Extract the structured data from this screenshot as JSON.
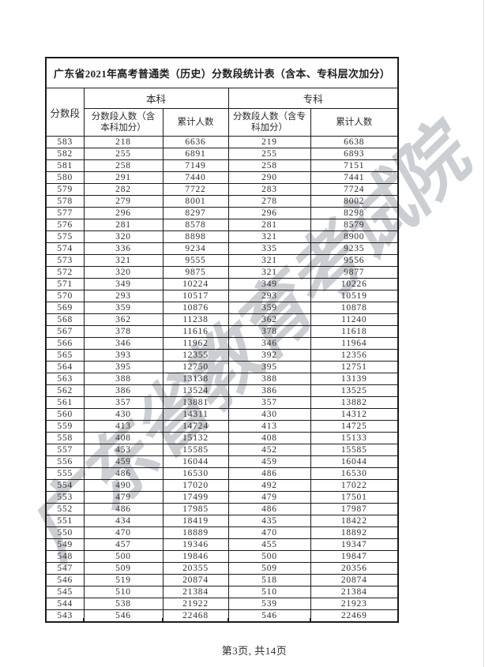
{
  "page": {
    "watermark_text": "广东省教育考试院",
    "footer_text": "第3页, 共14页"
  },
  "table": {
    "title": "广东省2021年高考普通类（历史）分数段统计表（含本、专科层次加分）",
    "col_headers": {
      "score_band": "分数段",
      "undergraduate_group": "本科",
      "college_group": "专科",
      "ug_count_lines": [
        "分数段人数（含",
        "本科加分）"
      ],
      "ug_cumulative": "累计人数",
      "col_count_lines": [
        "分数段人数（含专",
        "科加分）"
      ],
      "col_cumulative": "累计人数"
    },
    "rows": [
      [
        583,
        218,
        6636,
        219,
        6638
      ],
      [
        582,
        255,
        6891,
        255,
        6893
      ],
      [
        581,
        258,
        7149,
        258,
        7151
      ],
      [
        580,
        291,
        7440,
        290,
        7441
      ],
      [
        579,
        282,
        7722,
        283,
        7724
      ],
      [
        578,
        279,
        8001,
        278,
        8002
      ],
      [
        577,
        296,
        8297,
        296,
        8298
      ],
      [
        576,
        281,
        8578,
        281,
        8579
      ],
      [
        575,
        320,
        8898,
        321,
        8900
      ],
      [
        574,
        336,
        9234,
        335,
        9235
      ],
      [
        573,
        321,
        9555,
        321,
        9556
      ],
      [
        572,
        320,
        9875,
        321,
        9877
      ],
      [
        571,
        349,
        10224,
        349,
        10226
      ],
      [
        570,
        293,
        10517,
        293,
        10519
      ],
      [
        569,
        359,
        10876,
        359,
        10878
      ],
      [
        568,
        362,
        11238,
        362,
        11240
      ],
      [
        567,
        378,
        11616,
        378,
        11618
      ],
      [
        566,
        346,
        11962,
        346,
        11964
      ],
      [
        565,
        393,
        12355,
        392,
        12356
      ],
      [
        564,
        395,
        12750,
        395,
        12751
      ],
      [
        563,
        388,
        13138,
        388,
        13139
      ],
      [
        562,
        386,
        13524,
        386,
        13525
      ],
      [
        561,
        357,
        13881,
        357,
        13882
      ],
      [
        560,
        430,
        14311,
        430,
        14312
      ],
      [
        559,
        413,
        14724,
        413,
        14725
      ],
      [
        558,
        408,
        15132,
        408,
        15133
      ],
      [
        557,
        453,
        15585,
        452,
        15585
      ],
      [
        556,
        459,
        16044,
        459,
        16044
      ],
      [
        555,
        486,
        16530,
        486,
        16530
      ],
      [
        554,
        490,
        17020,
        492,
        17022
      ],
      [
        553,
        479,
        17499,
        479,
        17501
      ],
      [
        552,
        486,
        17985,
        486,
        17987
      ],
      [
        551,
        434,
        18419,
        435,
        18422
      ],
      [
        550,
        470,
        18889,
        470,
        18892
      ],
      [
        549,
        457,
        19346,
        455,
        19347
      ],
      [
        548,
        500,
        19846,
        500,
        19847
      ],
      [
        547,
        509,
        20355,
        509,
        20356
      ],
      [
        546,
        519,
        20874,
        518,
        20874
      ],
      [
        545,
        510,
        21384,
        510,
        21384
      ],
      [
        544,
        538,
        21922,
        539,
        21923
      ],
      [
        543,
        546,
        22468,
        546,
        22469
      ]
    ]
  },
  "colors": {
    "text": "#2b2b2b",
    "border": "#1b1b1b",
    "watermark": "#b9bdc4",
    "page_edge": "#dcdcdc"
  }
}
